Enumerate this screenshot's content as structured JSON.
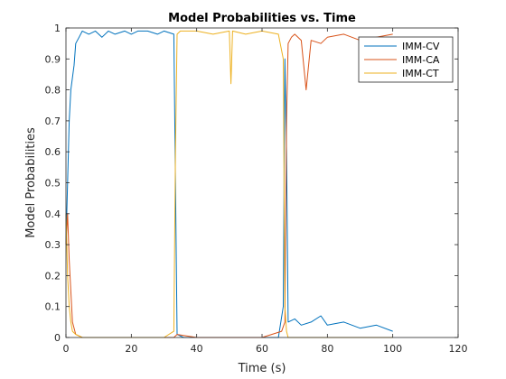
{
  "chart_data": {
    "type": "line",
    "title": "Model Probabilities vs. Time",
    "xlabel": "Time (s)",
    "ylabel": "Model Probabilities",
    "xlim": [
      0,
      120
    ],
    "ylim": [
      0,
      1
    ],
    "x_ticks": [
      "0",
      "20",
      "40",
      "60",
      "80",
      "100",
      "120"
    ],
    "y_ticks": [
      "0",
      "0.1",
      "0.2",
      "0.3",
      "0.4",
      "0.5",
      "0.6",
      "0.7",
      "0.8",
      "0.9",
      "1"
    ],
    "grid": false,
    "legend_position": "top-right",
    "series": [
      {
        "name": "IMM-CV",
        "color": "#0072BD",
        "x": [
          0,
          0.5,
          1,
          1.5,
          2,
          2.5,
          3,
          4,
          5,
          7,
          9,
          11,
          13,
          15,
          18,
          20,
          22,
          25,
          28,
          30,
          33,
          33.5,
          34,
          36,
          40,
          45,
          50,
          55,
          60,
          65,
          66.5,
          67,
          67.5,
          68,
          70,
          72,
          75,
          78,
          80,
          85,
          90,
          95,
          100
        ],
        "values": [
          0.3,
          0.5,
          0.7,
          0.8,
          0.84,
          0.88,
          0.95,
          0.97,
          0.99,
          0.98,
          0.99,
          0.97,
          0.99,
          0.98,
          0.99,
          0.98,
          0.99,
          0.99,
          0.98,
          0.99,
          0.98,
          0.5,
          0.01,
          0.0,
          0.0,
          0.0,
          0.0,
          0.0,
          0.0,
          0.0,
          0.1,
          0.9,
          0.6,
          0.05,
          0.06,
          0.04,
          0.05,
          0.07,
          0.04,
          0.05,
          0.03,
          0.04,
          0.02
        ]
      },
      {
        "name": "IMM-CA",
        "color": "#D95319",
        "x": [
          0,
          0.5,
          1,
          1.5,
          2,
          3,
          5,
          10,
          20,
          30,
          33,
          34,
          40,
          50,
          60,
          66,
          67,
          67.5,
          68,
          69,
          70,
          72,
          73.5,
          75,
          78,
          80,
          85,
          90,
          95,
          100
        ],
        "values": [
          0.3,
          0.4,
          0.25,
          0.15,
          0.05,
          0.01,
          0.0,
          0.0,
          0.0,
          0.0,
          0.0,
          0.01,
          0.0,
          0.0,
          0.0,
          0.02,
          0.05,
          0.7,
          0.95,
          0.97,
          0.98,
          0.96,
          0.8,
          0.96,
          0.95,
          0.97,
          0.98,
          0.96,
          0.97,
          0.98
        ]
      },
      {
        "name": "IMM-CT",
        "color": "#EDB120",
        "x": [
          0,
          0.5,
          1,
          1.5,
          2,
          3,
          5,
          10,
          20,
          30,
          33,
          33.5,
          34,
          35,
          40,
          45,
          50,
          50.5,
          51,
          55,
          60,
          65,
          66.5,
          67,
          67.5,
          68,
          70,
          80,
          90,
          100
        ],
        "values": [
          0.4,
          0.2,
          0.1,
          0.05,
          0.02,
          0.01,
          0.0,
          0.0,
          0.0,
          0.0,
          0.02,
          0.6,
          0.98,
          0.99,
          0.99,
          0.98,
          0.99,
          0.82,
          0.99,
          0.98,
          0.99,
          0.98,
          0.9,
          0.1,
          0.02,
          0.0,
          0.0,
          0.0,
          0.0,
          0.0
        ]
      }
    ]
  }
}
